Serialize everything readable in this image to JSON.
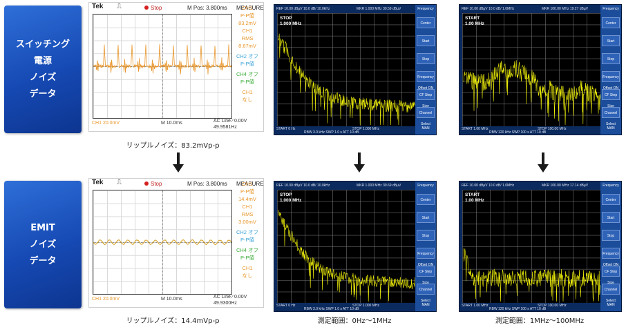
{
  "rows": [
    {
      "label_lines": [
        "スイッチング",
        "電源",
        "ノイズ",
        "データ"
      ],
      "scope": {
        "brand": "Tek",
        "trigger_glyph": "⎍",
        "state": "Stop",
        "mpos": "M Pos: 3.800ms",
        "measure_title": "MEASURE",
        "side": [
          {
            "t": "CH1",
            "c": "#e8962a"
          },
          {
            "t": "P-P値",
            "c": "#e8962a"
          },
          {
            "t": "83.2mV",
            "c": "#e8962a"
          },
          {
            "t": "CH1",
            "c": "#e8962a"
          },
          {
            "t": "RMS",
            "c": "#e8962a"
          },
          {
            "t": "8.67mV",
            "c": "#e8962a"
          },
          {
            "t": "CH2 オフ",
            "c": "#3aa3d8"
          },
          {
            "t": "P-P値",
            "c": "#3aa3d8"
          },
          {
            "t": "CH4 オフ",
            "c": "#3cae3c"
          },
          {
            "t": "P-P値",
            "c": "#3cae3c"
          },
          {
            "t": "CH1",
            "c": "#e8962a"
          },
          {
            "t": "なし",
            "c": "#e8962a"
          }
        ],
        "ch": "CH1  20.0mV",
        "tb": "M 10.0ms",
        "acline": "AC Line  ∕  0.00V",
        "freq": "49.9581Hz",
        "trace_color": "#e8962a"
      },
      "caption": "リップルノイズ：83.2mVp-p",
      "sa": [
        {
          "marker_lines": [
            "STOP",
            "1.000 MHz"
          ],
          "hdr_left": "REF 10.00 dBµV   10.0 dB/    10.0kHz",
          "hdr_mid": "MKR 1.000 MHz   39.59 dBµV",
          "ftr_left": "START 0 Hz",
          "ftr_mid": "STOP 1.000 MHz",
          "ftr_sub": "RBW 3.0 kHz   SWP 1.0 s   ATT 10 dB"
        },
        {
          "marker_lines": [
            "START",
            "1.00 MHz"
          ],
          "hdr_left": "REF 10.00 dBµV   10.0 dB/    1.0MHz",
          "hdr_mid": "MKR 100.00 MHz   19.27 dBµV",
          "ftr_left": "START 1.00 MHz",
          "ftr_mid": "STOP 100.00 MHz",
          "ftr_sub": "RBW 120 kHz   SWP 100 s   ATT 10 dB"
        }
      ]
    },
    {
      "label_lines": [
        "EMIT",
        "ノイズ",
        "データ"
      ],
      "scope": {
        "brand": "Tek",
        "trigger_glyph": "⎍",
        "state": "Stop",
        "mpos": "M Pos: 3.800ms",
        "measure_title": "MEASURE",
        "side": [
          {
            "t": "CH1",
            "c": "#e8962a"
          },
          {
            "t": "P-P値",
            "c": "#e8962a"
          },
          {
            "t": "14.4mV",
            "c": "#e8962a"
          },
          {
            "t": "CH1",
            "c": "#e8962a"
          },
          {
            "t": "RMS",
            "c": "#e8962a"
          },
          {
            "t": "3.00mV",
            "c": "#e8962a"
          },
          {
            "t": "CH2 オフ",
            "c": "#3aa3d8"
          },
          {
            "t": "P-P値",
            "c": "#3aa3d8"
          },
          {
            "t": "CH4 オフ",
            "c": "#3cae3c"
          },
          {
            "t": "P-P値",
            "c": "#3cae3c"
          },
          {
            "t": "CH1",
            "c": "#e8962a"
          },
          {
            "t": "なし",
            "c": "#e8962a"
          }
        ],
        "ch": "CH1  20.0mV",
        "tb": "M 10.0ms",
        "acline": "AC Line  ∕  0.00V",
        "freq": "49.9300Hz",
        "trace_color": "#d6a22a"
      },
      "caption": "リップルノイズ：14.4mVp-p",
      "sa": [
        {
          "marker_lines": [
            "STOP",
            "1.000 MHz"
          ],
          "hdr_left": "REF 10.00 dBµV   10.0 dB/    10.0kHz",
          "hdr_mid": "MKR 1.000 MHz   39.69 dBµV",
          "ftr_left": "START 0 Hz",
          "ftr_mid": "STOP 1.000 MHz",
          "ftr_sub": "RBW 3.0 kHz   SWP 1.0 s   ATT 10 dB",
          "caption": "測定範囲：0Hz～1MHz"
        },
        {
          "marker_lines": [
            "START",
            "1.00 MHz"
          ],
          "hdr_left": "REF 10.00 dBµV   10.0 dB/    1.0MHz",
          "hdr_mid": "MKR 100.00 MHz   17.14 dBµV",
          "ftr_left": "START 1.00 MHz",
          "ftr_mid": "STOP 100.00 MHz",
          "ftr_sub": "RBW 120 kHz   SWP 100 s   ATT 10 dB",
          "caption": "測定範囲：1MHz～100MHz"
        }
      ]
    }
  ],
  "sa_menu": {
    "title": "Frequency",
    "items": [
      "Center",
      "Start",
      "Stop",
      "Frequency Offset ON OFF",
      "CF Step Size AUTO MAN",
      "Channel Select"
    ]
  },
  "colors": {
    "label_blue": "#1f5bc4",
    "sa_trace": "#f2f20a",
    "sa_bg": "#0b2a5e",
    "arrow": "#1a1a1a"
  }
}
